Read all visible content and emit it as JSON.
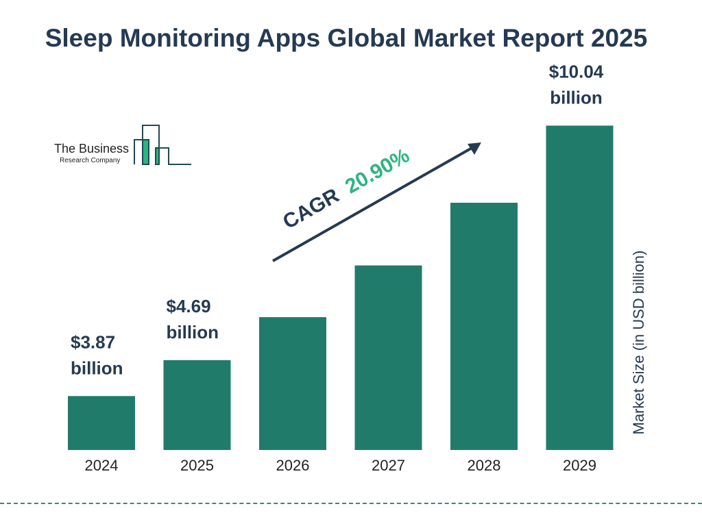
{
  "chart_data": {
    "type": "bar",
    "title": "Sleep Monitoring Apps Global Market Report 2025",
    "ylabel": "Market Size (in USD billion)",
    "categories": [
      "2024",
      "2025",
      "2026",
      "2027",
      "2028",
      "2029"
    ],
    "values": [
      3.87,
      4.69,
      5.67,
      6.85,
      8.28,
      10.04
    ],
    "data_labels": [
      {
        "index": 0,
        "line1": "$3.87",
        "line2": "billion"
      },
      {
        "index": 1,
        "line1": "$4.69",
        "line2": "billion"
      },
      {
        "index": 5,
        "line1": "$10.04",
        "line2": "billion"
      }
    ],
    "annotation": {
      "prefix": "CAGR",
      "value": "20.90%"
    },
    "grid": false,
    "colors": {
      "bar": "#207b6b",
      "text": "#253a52",
      "accent": "#2bb57f"
    }
  },
  "logo": {
    "line1": "The Business",
    "line2": "Research Company"
  }
}
